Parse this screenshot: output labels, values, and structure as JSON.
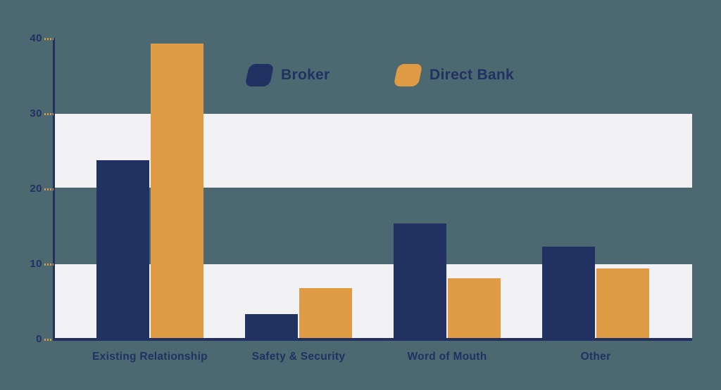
{
  "chart_data": {
    "type": "bar",
    "categories": [
      "Existing Relationship",
      "Safety & Security",
      "Word of Mouth",
      "Other"
    ],
    "series": [
      {
        "name": "Broker",
        "color": "#213161",
        "values": [
          23.8,
          3.4,
          15.4,
          12.3
        ]
      },
      {
        "name": "Direct Bank",
        "color": "#E09C45",
        "values": [
          39.3,
          6.8,
          8.1,
          9.4
        ]
      }
    ],
    "title": "",
    "xlabel": "",
    "ylabel": "",
    "ylim": [
      0,
      40
    ],
    "yticks": [
      0,
      10,
      20,
      30,
      40
    ],
    "grid": "alternating-horizontal-bands",
    "legend_position": "top-center"
  },
  "colors": {
    "background": "#4C6971",
    "band": "#F2F2F4",
    "axis": "#213161",
    "tick_dash": "#E09C45",
    "text": "#213161"
  }
}
